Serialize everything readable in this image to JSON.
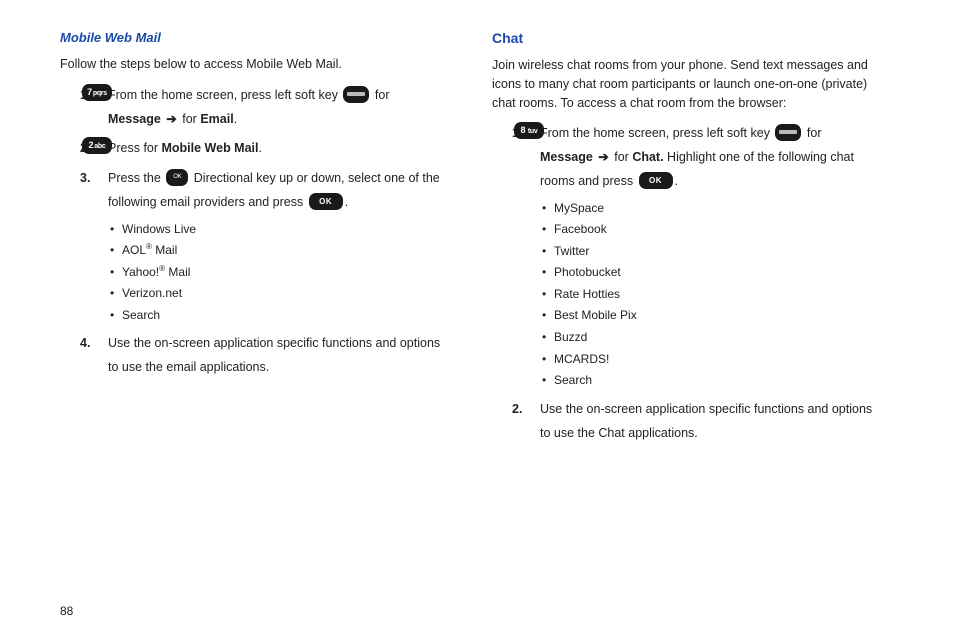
{
  "colors": {
    "heading": "#1a4aa8",
    "text": "#222222",
    "keyBg": "#1a1a1a",
    "keyFg": "#ffffff",
    "bg": "#ffffff"
  },
  "pageNumber": "88",
  "left": {
    "heading": "Mobile Web Mail",
    "intro": "Follow the steps below to access Mobile Web Mail.",
    "step1_num": "1.",
    "step1_a": "From the home screen, press left soft key ",
    "step1_for": " for",
    "step1_msgLabel": "Message",
    "step1_arrow": " ➔ ",
    "step1_forEmail": " for ",
    "step1_email": "Email",
    "step2_num": "2.",
    "step2_a": "Press ",
    "step2_forMWM": " for ",
    "step2_mwm": "Mobile Web Mail",
    "step3_num": "3.",
    "step3_a": "Press the ",
    "step3_b": " Directional key up or down, select one of the following email providers and press ",
    "providers": [
      "Windows Live",
      "AOL",
      " Mail",
      "Yahoo!",
      " Mail",
      "Verizon.net",
      "Search"
    ],
    "step4_num": "4.",
    "step4": "Use the on-screen application specific functions and options to use the email applications.",
    "key7": "7pqrs",
    "key2": "2abc",
    "keyOK": "OK",
    "keyOKsm": "OK"
  },
  "right": {
    "heading": "Chat",
    "intro": "Join wireless chat rooms from your phone. Send text messages and icons to many chat room participants or launch one-on-one (private) chat rooms. To access a chat room from the browser:",
    "step1_num": "1.",
    "step1_a": "From the home screen, press left soft key ",
    "step1_for": " for",
    "step1_msgLabel": "Message",
    "step1_arrow": " ➔ ",
    "step1_forChat": " for ",
    "step1_chat": "Chat.",
    "step1_b": " Highlight one of the following chat rooms and press ",
    "rooms": [
      "MySpace",
      "Facebook",
      "Twitter",
      "Photobucket",
      "Rate Hotties",
      "Best Mobile Pix",
      "Buzzd",
      "MCARDS!",
      "Search"
    ],
    "step2_num": "2.",
    "step2": "Use the on-screen application specific functions and options to use the Chat applications.",
    "key8": "8 tuv",
    "keyOK": "OK"
  }
}
